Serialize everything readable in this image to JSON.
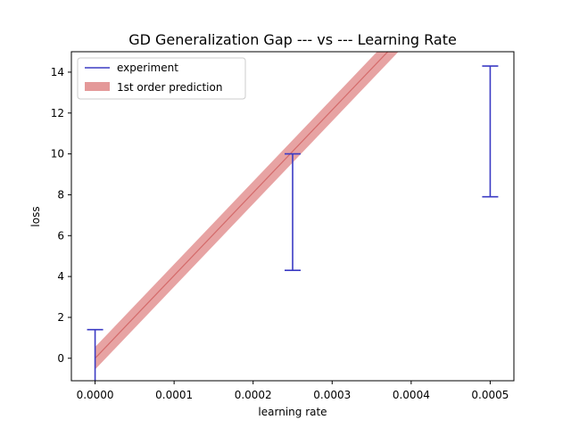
{
  "chart_data": {
    "type": "line",
    "title": "GD Generalization Gap --- vs --- Learning Rate",
    "xlabel": "learning rate",
    "ylabel": "loss",
    "xlim": [
      -3e-05,
      0.00053
    ],
    "ylim": [
      -1.1,
      15
    ],
    "x_ticks": [
      0,
      0.0001,
      0.0002,
      0.0003,
      0.0004,
      0.0005
    ],
    "x_tick_labels": [
      "0.0000",
      "0.0001",
      "0.0002",
      "0.0003",
      "0.0004",
      "0.0005"
    ],
    "y_ticks": [
      0,
      2,
      4,
      6,
      8,
      10,
      12,
      14
    ],
    "y_tick_labels": [
      "0",
      "2",
      "4",
      "6",
      "8",
      "10",
      "12",
      "14"
    ],
    "grid": false,
    "legend_position": "top-left",
    "series": [
      {
        "name": "experiment",
        "kind": "errorbar",
        "color": "#3b3bc4",
        "points": [
          {
            "x": 0,
            "low": -1.1,
            "high": 1.4
          },
          {
            "x": 0.00025,
            "low": 4.3,
            "high": 10.0
          },
          {
            "x": 0.0005,
            "low": 7.9,
            "high": 14.3
          }
        ]
      },
      {
        "name": "1st order prediction",
        "kind": "band",
        "color": "#d46a6a",
        "band_color": "#e49999",
        "x": [
          0,
          0.0004
        ],
        "center": [
          0,
          16.2
        ],
        "half_width": 0.55
      }
    ]
  }
}
